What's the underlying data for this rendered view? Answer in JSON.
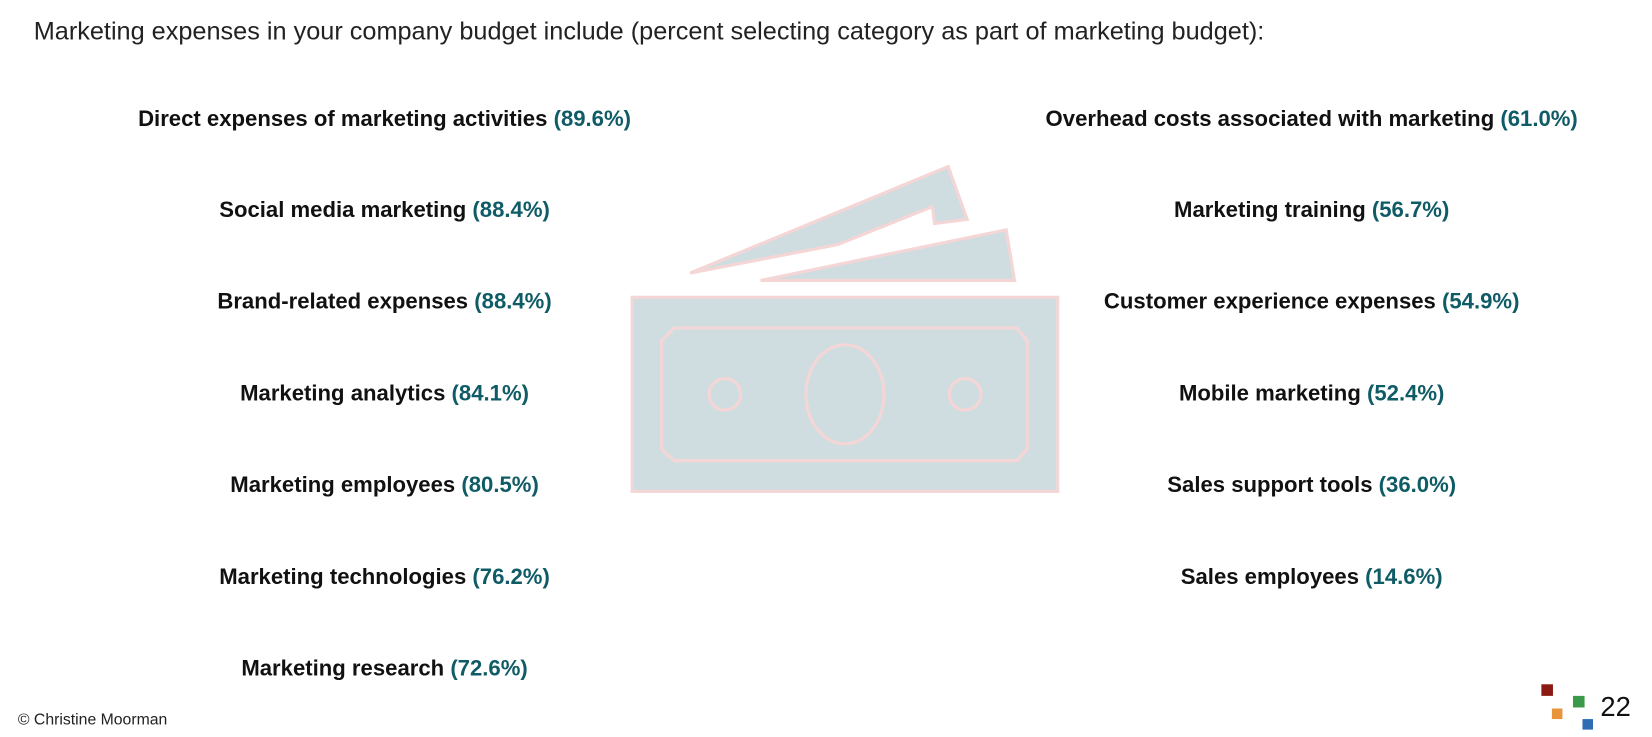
{
  "header": {
    "title": "Marketing expenses in your company budget include (percent selecting category as part of marketing budget):"
  },
  "left_items": [
    {
      "label": "Direct expenses of marketing activities",
      "percent": "(89.6%)"
    },
    {
      "label": "Social media marketing",
      "percent": "(88.4%)"
    },
    {
      "label": "Brand-related expenses",
      "percent": "(88.4%)"
    },
    {
      "label": "Marketing analytics",
      "percent": "(84.1%)"
    },
    {
      "label": "Marketing employees",
      "percent": "(80.5%)"
    },
    {
      "label": "Marketing technologies",
      "percent": "(76.2%)"
    },
    {
      "label": "Marketing research",
      "percent": "(72.6%)"
    }
  ],
  "right_items": [
    {
      "label": "Overhead costs associated with marketing",
      "percent": "(61.0%)"
    },
    {
      "label": "Marketing training",
      "percent": "(56.7%)"
    },
    {
      "label": "Customer experience expenses",
      "percent": "(54.9%)"
    },
    {
      "label": "Mobile marketing",
      "percent": "(52.4%)"
    },
    {
      "label": "Sales support tools",
      "percent": "(36.0%)"
    },
    {
      "label": "Sales employees",
      "percent": "(14.6%)"
    }
  ],
  "footer": {
    "copyright": "© Christine Moorman",
    "page_number": "22"
  }
}
